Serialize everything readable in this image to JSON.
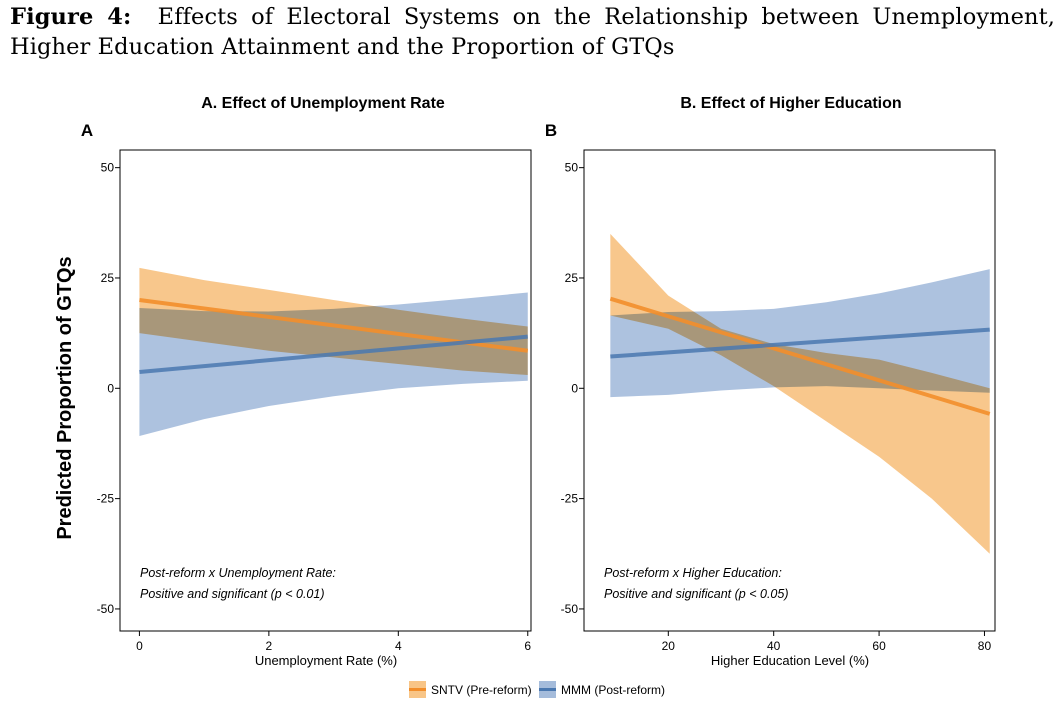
{
  "figure": {
    "label": "Figure 4:",
    "title": "Effects of Electoral Systems on the Relationship between Unemployment, Higher Education Attainment and the Proportion of GTQs"
  },
  "ylabel": "Predicted Proportion of GTQs",
  "legend": {
    "placement": "bottom",
    "items": [
      {
        "name": "SNTV (Pre-reform)",
        "color": "#f28e2b"
      },
      {
        "name": "MMM (Post-reform)",
        "color": "#4e79a7"
      }
    ]
  },
  "colors": {
    "sntv_line": "#f28e2b",
    "sntv_band": "#f5b25f",
    "mmm_line": "#4a78b0",
    "mmm_band": "#8eabd2"
  },
  "chart_data": [
    {
      "type": "line",
      "panel_letter": "A",
      "title": "A. Effect of Unemployment Rate",
      "xlabel": "Unemployment Rate (%)",
      "ylabel": "Predicted Proportion of GTQs",
      "xlim": [
        -0.3,
        6.05
      ],
      "ylim": [
        -55,
        54
      ],
      "xticks": [
        0,
        2,
        4,
        6
      ],
      "yticks": [
        50,
        25,
        0,
        -25,
        -50
      ],
      "grid": false,
      "annotation": [
        "Post-reform x Unemployment Rate:",
        "Positive and significant (p < 0.01)"
      ],
      "series": [
        {
          "name": "SNTV (Pre-reform)",
          "x": [
            0,
            6
          ],
          "y": [
            20,
            8.5
          ],
          "ci_x": [
            0,
            1,
            2,
            3,
            4,
            5,
            6
          ],
          "ci_lower": [
            12.5,
            10.5,
            8.5,
            7,
            5.5,
            4,
            3
          ],
          "ci_upper": [
            27.3,
            24.5,
            22.3,
            20,
            17.8,
            15.8,
            14
          ]
        },
        {
          "name": "MMM (Post-reform)",
          "x": [
            0,
            6
          ],
          "y": [
            3.7,
            11.7
          ],
          "ci_x": [
            0,
            1,
            2,
            3,
            4,
            5,
            6
          ],
          "ci_lower": [
            -10.8,
            -7,
            -4,
            -1.8,
            0,
            1,
            1.7
          ],
          "ci_upper": [
            18.2,
            17.5,
            17.4,
            18,
            19,
            20.3,
            21.7
          ]
        }
      ]
    },
    {
      "type": "line",
      "panel_letter": "B",
      "title": "B. Effect of Higher Education",
      "xlabel": "Higher Education Level (%)",
      "ylabel": "",
      "xlim": [
        4,
        82
      ],
      "ylim": [
        -55,
        54
      ],
      "xticks": [
        20,
        40,
        60,
        80
      ],
      "yticks": [
        50,
        25,
        0,
        -25,
        -50
      ],
      "grid": false,
      "annotation": [
        "Post-reform x Higher Education:",
        "Positive and significant (p < 0.05)"
      ],
      "series": [
        {
          "name": "SNTV (Pre-reform)",
          "x": [
            9,
            81
          ],
          "y": [
            20.3,
            -5.8
          ],
          "ci_x": [
            9,
            20,
            30,
            40,
            50,
            60,
            70,
            81
          ],
          "ci_lower": [
            16.5,
            13.5,
            7.5,
            0.5,
            -7.5,
            -15.5,
            -25,
            -37.5
          ],
          "ci_upper": [
            35,
            21,
            13.5,
            10,
            8,
            6.5,
            3.5,
            0
          ]
        },
        {
          "name": "MMM (Post-reform)",
          "x": [
            9,
            81
          ],
          "y": [
            7.2,
            13.3
          ],
          "ci_x": [
            9,
            20,
            30,
            40,
            50,
            60,
            70,
            81
          ],
          "ci_lower": [
            -2,
            -1.5,
            -0.5,
            0.2,
            0.5,
            0,
            -0.5,
            -1
          ],
          "ci_upper": [
            16.5,
            17.3,
            17.5,
            18,
            19.5,
            21.5,
            24,
            27
          ]
        }
      ]
    }
  ]
}
